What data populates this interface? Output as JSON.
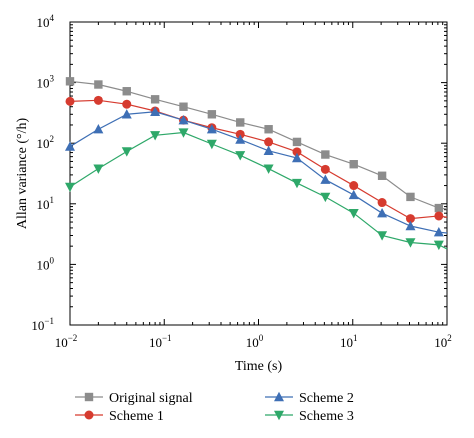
{
  "chart_data": {
    "type": "line",
    "title": "",
    "xlabel": "Time (s)",
    "ylabel": "Allan variance (°/h)",
    "xscale": "log",
    "yscale": "log",
    "xlim": [
      0.01,
      100
    ],
    "ylim": [
      0.1,
      10000
    ],
    "x_ticks": [
      {
        "base": "10",
        "exp": "−2",
        "value": 0.01
      },
      {
        "base": "10",
        "exp": "−1",
        "value": 0.1
      },
      {
        "base": "10",
        "exp": "0",
        "value": 1
      },
      {
        "base": "10",
        "exp": "1",
        "value": 10
      },
      {
        "base": "10",
        "exp": "2",
        "value": 100
      }
    ],
    "y_ticks": [
      {
        "base": "10",
        "exp": "−1",
        "value": 0.1
      },
      {
        "base": "10",
        "exp": "0",
        "value": 1
      },
      {
        "base": "10",
        "exp": "1",
        "value": 10
      },
      {
        "base": "10",
        "exp": "2",
        "value": 100
      },
      {
        "base": "10",
        "exp": "3",
        "value": 1000
      },
      {
        "base": "10",
        "exp": "4",
        "value": 10000
      }
    ],
    "grid": false,
    "legend_position": "bottom",
    "x": [
      0.01,
      0.02,
      0.04,
      0.08,
      0.16,
      0.32,
      0.64,
      1.28,
      2.56,
      5.12,
      10.24,
      20.48,
      40.96,
      81.92,
      100
    ],
    "series": [
      {
        "name": "Original signal",
        "color": "#8c8c8c",
        "marker": "square",
        "values": [
          1050,
          930,
          720,
          530,
          400,
          300,
          220,
          170,
          105,
          65,
          45,
          29,
          13,
          8.5,
          8.2
        ]
      },
      {
        "name": "Scheme 1",
        "color": "#d63b2f",
        "marker": "circle",
        "values": [
          490,
          510,
          440,
          340,
          240,
          180,
          140,
          105,
          72,
          37,
          20,
          10.5,
          5.7,
          6.3,
          6.0
        ]
      },
      {
        "name": "Scheme 2",
        "color": "#3e6fb5",
        "marker": "triangle-up",
        "values": [
          88,
          170,
          300,
          330,
          240,
          170,
          115,
          75,
          57,
          25,
          14,
          7,
          4.3,
          3.4,
          3.3
        ]
      },
      {
        "name": "Scheme 3",
        "color": "#2ea869",
        "marker": "triangle-down",
        "values": [
          19,
          38,
          73,
          135,
          150,
          97,
          63,
          38,
          22,
          13,
          7,
          3,
          2.3,
          2.1,
          1.8
        ]
      }
    ]
  }
}
